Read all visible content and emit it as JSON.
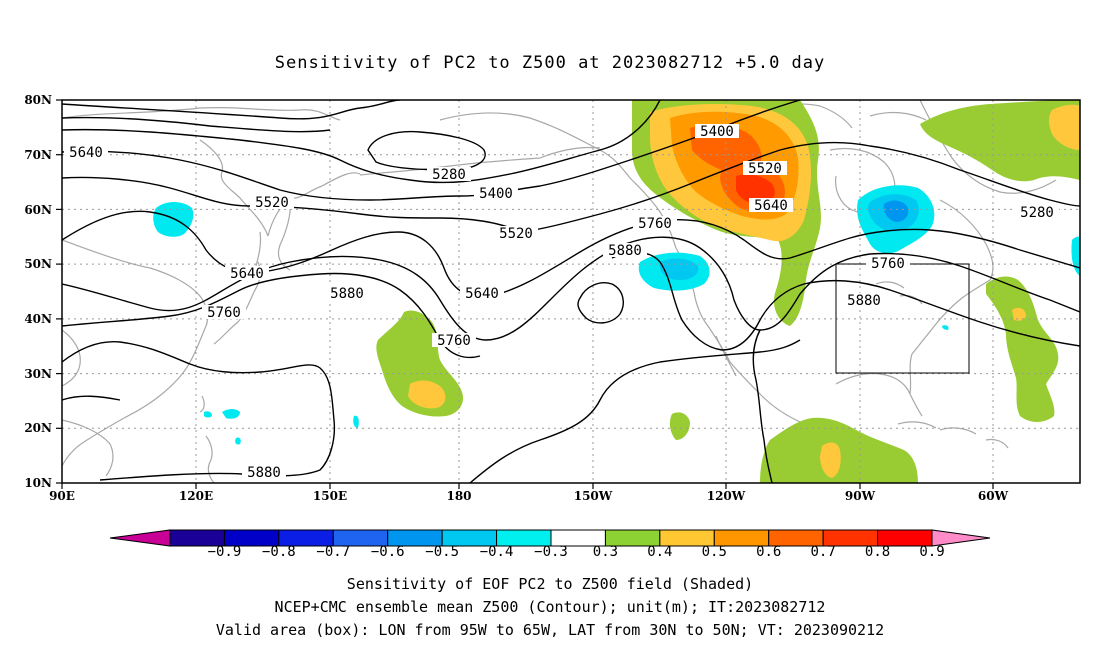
{
  "title": "Sensitivity of PC2 to Z500 at 2023082712 +5.0 day",
  "lat_ticks": [
    "80N",
    "70N",
    "60N",
    "50N",
    "40N",
    "30N",
    "20N",
    "10N"
  ],
  "lon_ticks": [
    "90E",
    "120E",
    "150E",
    "180",
    "150W",
    "120W",
    "90W",
    "60W"
  ],
  "contour_labels": [
    "5640",
    "5520",
    "5640",
    "5760",
    "5880",
    "5880",
    "5280",
    "5400",
    "5520",
    "5640",
    "5760",
    "5880",
    "5760",
    "5400",
    "5520",
    "5640",
    "5760",
    "5880",
    "5280"
  ],
  "colorbar": {
    "labels": [
      "−0.9",
      "−0.8",
      "−0.7",
      "−0.6",
      "−0.5",
      "−0.4",
      "−0.3",
      "0.3",
      "0.4",
      "0.5",
      "0.6",
      "0.7",
      "0.8",
      "0.9"
    ],
    "colors": [
      "#1a0096",
      "#0000c8",
      "#0a1ee6",
      "#1e64f0",
      "#0096f0",
      "#00c8f0",
      "#00f0f0",
      "#ffffff",
      "#8cd232",
      "#ffc832",
      "#ff9600",
      "#ff6400",
      "#ff3200",
      "#ff0000"
    ],
    "left_end_color": "#c80096",
    "right_end_color": "#ff8cc8"
  },
  "shading_colors": {
    "green": "#99cc33",
    "yellow": "#ffc83c",
    "orange": "#ff9a00",
    "dark_orange": "#ff6400",
    "red_orange": "#ff3200",
    "light_cyan": "#00e8f0",
    "cyan": "#00c8f0",
    "blue_cyan": "#0096f0"
  },
  "caption": {
    "line1": "Sensitivity of EOF PC2 to Z500 field (Shaded)",
    "line2": "NCEP+CMC ensemble mean Z500 (Contour); unit(m); IT:2023082712",
    "line3": "Valid area (box): LON from 95W to 65W, LAT from 30N to 50N; VT: 2023090212"
  }
}
